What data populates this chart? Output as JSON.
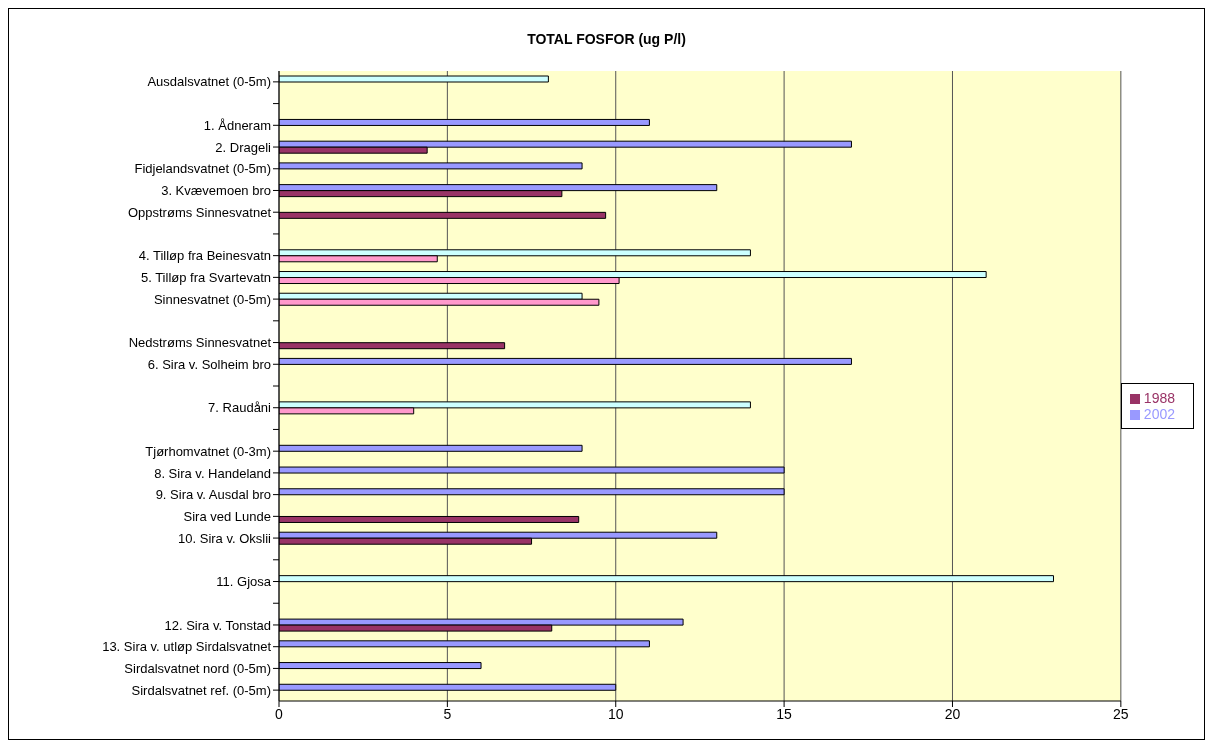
{
  "chart_data": {
    "type": "bar",
    "orientation": "horizontal",
    "title": "TOTAL FOSFOR (ug P/l)",
    "categories": [
      "Ausdalsvatnet (0-5m)",
      null,
      "1. Ådneram",
      "2. Drageli",
      "Fidjelandsvatnet (0-5m)",
      "3. Kvævemoen bro",
      "Oppstrøms Sinnesvatnet",
      null,
      "4. Tilløp fra Beinesvatn",
      "5. Tilløp fra Svartevatn",
      "Sinnesvatnet (0-5m)",
      null,
      "Nedstrøms Sinnesvatnet",
      "6. Sira v. Solheim bro",
      null,
      "7. Raudåni",
      null,
      "Tjørhomvatnet (0-3m)",
      "8. Sira v. Handeland",
      "9. Sira v. Ausdal bro",
      "Sira ved Lunde",
      "10. Sira v. Okslii",
      null,
      "11. Gjosa",
      null,
      "12. Sira v. Tonstad",
      "13. Sira v. utløp Sirdalsvatnet",
      "Sirdalsvatnet nord (0-5m)",
      "Sirdalsvatnet ref. (0-5m)"
    ],
    "series": [
      {
        "name": "2002",
        "color": "#9999ff",
        "values": [
          8,
          null,
          11,
          17,
          9,
          13,
          null,
          null,
          14,
          21,
          9,
          null,
          null,
          17,
          null,
          14,
          null,
          9,
          15,
          15,
          null,
          13,
          null,
          23,
          null,
          12,
          11,
          6,
          10
        ],
        "colors": [
          "#ccffff",
          null,
          "#9999ff",
          "#9999ff",
          "#9999ff",
          "#9999ff",
          null,
          null,
          "#ccffff",
          "#ccffff",
          "#ccffff",
          null,
          null,
          "#9999ff",
          null,
          "#ccffff",
          null,
          "#9999ff",
          "#9999ff",
          "#9999ff",
          null,
          "#9999ff",
          null,
          "#ccffff",
          null,
          "#9999ff",
          "#9999ff",
          "#9999ff",
          "#9999ff"
        ]
      },
      {
        "name": "1988",
        "color": "#993366",
        "values": [
          null,
          null,
          null,
          4.4,
          null,
          8.4,
          9.7,
          null,
          4.7,
          10.1,
          9.5,
          null,
          6.7,
          null,
          null,
          4.0,
          null,
          null,
          null,
          null,
          8.9,
          7.5,
          null,
          null,
          null,
          8.1,
          null,
          null,
          null
        ],
        "colors": [
          null,
          null,
          null,
          "#993366",
          null,
          "#993366",
          "#993366",
          null,
          "#ff99cc",
          "#ff99cc",
          "#ff99cc",
          null,
          "#993366",
          null,
          null,
          "#ff99cc",
          null,
          null,
          null,
          null,
          "#993366",
          "#993366",
          null,
          null,
          null,
          "#993366",
          null,
          null,
          null
        ]
      }
    ],
    "xlim": [
      0,
      25
    ],
    "xticks": [
      0,
      5,
      10,
      15,
      20,
      25
    ],
    "grid": "x",
    "legend": "right"
  }
}
